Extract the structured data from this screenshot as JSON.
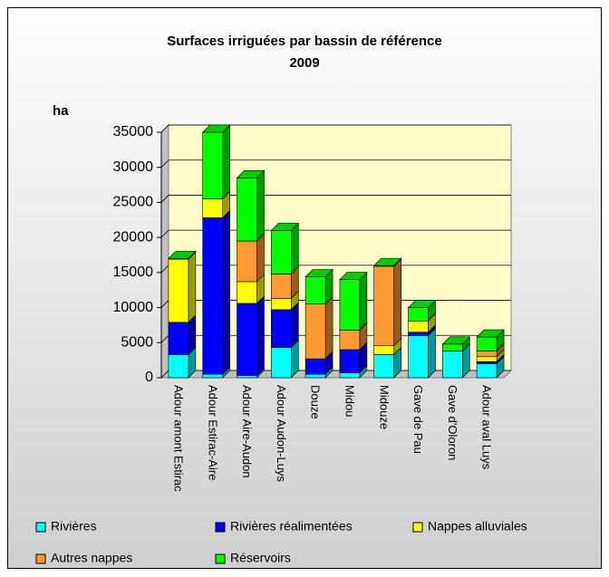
{
  "chart_data": {
    "type": "stacked-bar-3d",
    "title": "Surfaces irriguées par bassin de référence",
    "subtitle": "2009",
    "y_label": "ha",
    "categories": [
      "Adour amont Estirac",
      "Adour Estirac-Aire",
      "Adour Aire-Audon",
      "Adour Audon-Luys",
      "Douze",
      "Midou",
      "Midouze",
      "Gave de Pau",
      "Gave d'Oloron",
      "Adour aval Luys"
    ],
    "series": [
      {
        "name": "Rivières",
        "color": "#00ffff",
        "values": [
          3300,
          500,
          300,
          4300,
          500,
          700,
          3300,
          6000,
          3800,
          2000
        ]
      },
      {
        "name": "Rivières réalimentées",
        "color": "#0000ff",
        "values": [
          4600,
          22300,
          10300,
          5400,
          2200,
          3300,
          0,
          500,
          0,
          300
        ]
      },
      {
        "name": "Nappes alluviales",
        "color": "#ffff00",
        "values": [
          9000,
          2700,
          3100,
          1600,
          0,
          0,
          1300,
          1600,
          0,
          700
        ]
      },
      {
        "name": "Autres nappes",
        "color": "#ff9933",
        "values": [
          0,
          0,
          5800,
          3500,
          7800,
          2800,
          11300,
          0,
          0,
          800
        ]
      },
      {
        "name": "Réservoirs",
        "color": "#00ff00",
        "values": [
          100,
          9500,
          9000,
          6200,
          3900,
          7200,
          100,
          1900,
          1000,
          2000
        ]
      }
    ],
    "ylim": [
      0,
      35000
    ],
    "yticks": [
      0,
      5000,
      10000,
      15000,
      20000,
      25000,
      30000,
      35000
    ],
    "grid": true
  }
}
